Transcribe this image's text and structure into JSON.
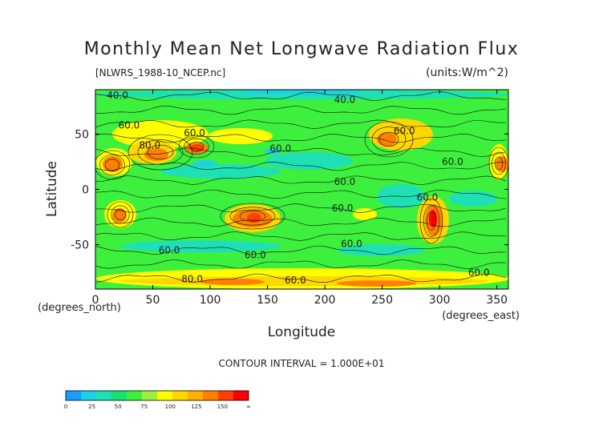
{
  "chart_data": {
    "type": "heatmap",
    "title": "Monthly Mean Net Longwave Radiation Flux",
    "subtitle_left": "[NLWRS_1988-10_NCEP.nc]",
    "subtitle_right": "(units:W/m^2)",
    "xlabel": "Longitude",
    "ylabel": "Latitude",
    "x_unit_label": "(degrees_east)",
    "y_unit_label": "(degrees_north)",
    "xlim": [
      0,
      360
    ],
    "ylim": [
      -90,
      90
    ],
    "x_ticks": [
      0,
      50,
      100,
      150,
      200,
      250,
      300,
      350
    ],
    "y_ticks": [
      50,
      0,
      -50
    ],
    "contour_interval_text": "CONTOUR INTERVAL = 1.000E+01",
    "contour_labels": [
      {
        "text": "40.0",
        "lon": 10,
        "lat": 82
      },
      {
        "text": "40.0",
        "lon": 208,
        "lat": 78
      },
      {
        "text": "60.0",
        "lon": 20,
        "lat": 55
      },
      {
        "text": "80.0",
        "lon": 38,
        "lat": 37
      },
      {
        "text": "60.0",
        "lon": 77,
        "lat": 48
      },
      {
        "text": "60.0",
        "lon": 152,
        "lat": 34
      },
      {
        "text": "60.0",
        "lon": 260,
        "lat": 50
      },
      {
        "text": "60.0",
        "lon": 302,
        "lat": 22
      },
      {
        "text": "60.0",
        "lon": 208,
        "lat": 4
      },
      {
        "text": "60.0",
        "lon": 206,
        "lat": -20
      },
      {
        "text": "60.0",
        "lon": 280,
        "lat": -10
      },
      {
        "text": "60.0",
        "lon": 214,
        "lat": -52
      },
      {
        "text": "60.0",
        "lon": 55,
        "lat": -58
      },
      {
        "text": "60.0",
        "lon": 130,
        "lat": -62
      },
      {
        "text": "60.0",
        "lon": 325,
        "lat": -78
      },
      {
        "text": "60.0",
        "lon": 165,
        "lat": -85
      },
      {
        "text": "80.0",
        "lon": 75,
        "lat": -84
      }
    ],
    "colorbar": {
      "ticks": [
        "0",
        "25",
        "50",
        "75",
        "100",
        "125",
        "150",
        "∞"
      ],
      "colors": [
        "#1a9bff",
        "#1ed0e6",
        "#1fe0b5",
        "#19e070",
        "#3ef03e",
        "#9cf03e",
        "#ffff00",
        "#ffd700",
        "#ffb000",
        "#ff8000",
        "#ff4000",
        "#ff0000"
      ]
    }
  }
}
